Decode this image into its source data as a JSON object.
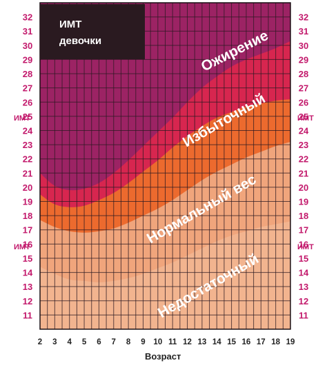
{
  "chart_data": {
    "type": "area",
    "title": "ИМТ",
    "subtitle": "девочки",
    "xlabel": "Возраст",
    "y_unit_label": "ИМТ",
    "x": [
      2,
      3,
      4,
      5,
      6,
      7,
      8,
      9,
      10,
      11,
      12,
      13,
      14,
      15,
      16,
      17,
      18,
      19
    ],
    "xlim": [
      2,
      19
    ],
    "ylim": [
      10,
      33
    ],
    "y_ticks": [
      11,
      12,
      13,
      14,
      15,
      16,
      17,
      18,
      19,
      20,
      21,
      22,
      23,
      24,
      25,
      26,
      27,
      28,
      29,
      30,
      31,
      32
    ],
    "grid": true,
    "boundaries": [
      {
        "values": [
          14.4,
          13.9,
          13.5,
          13.4,
          13.3,
          13.4,
          13.6,
          13.9,
          14.3,
          14.7,
          15.2,
          15.7,
          16.2,
          16.6,
          16.9,
          17.2,
          17.4,
          17.6
        ]
      },
      {
        "values": [
          17.7,
          17.2,
          16.9,
          16.8,
          16.9,
          17.1,
          17.5,
          18.0,
          18.5,
          19.1,
          19.8,
          20.5,
          21.1,
          21.6,
          22.1,
          22.5,
          22.9,
          23.2
        ]
      },
      {
        "values": [
          19.5,
          18.8,
          18.6,
          18.7,
          19.1,
          19.6,
          20.3,
          21.1,
          21.9,
          22.8,
          23.6,
          24.3,
          24.9,
          25.3,
          25.7,
          25.9,
          26.1,
          26.2
        ]
      },
      {
        "values": [
          21.0,
          20.1,
          19.8,
          19.9,
          20.3,
          21.0,
          21.9,
          22.9,
          23.9,
          24.9,
          26.0,
          27.0,
          27.8,
          28.5,
          29.0,
          29.4,
          29.8,
          30.3
        ]
      }
    ],
    "zones": [
      {
        "name": "Недостаточный",
        "color": "#f0a57c"
      },
      {
        "name": "Нормальный вес",
        "color": "#ec6a2e"
      },
      {
        "name": "Избыточный",
        "color": "#d7264f"
      },
      {
        "name": "Ожирение",
        "color": "#9c2364"
      }
    ],
    "grid_color": "#2b1a22",
    "axis_tick_color": "#c2186b",
    "title_box_color": "#2a1a20"
  }
}
